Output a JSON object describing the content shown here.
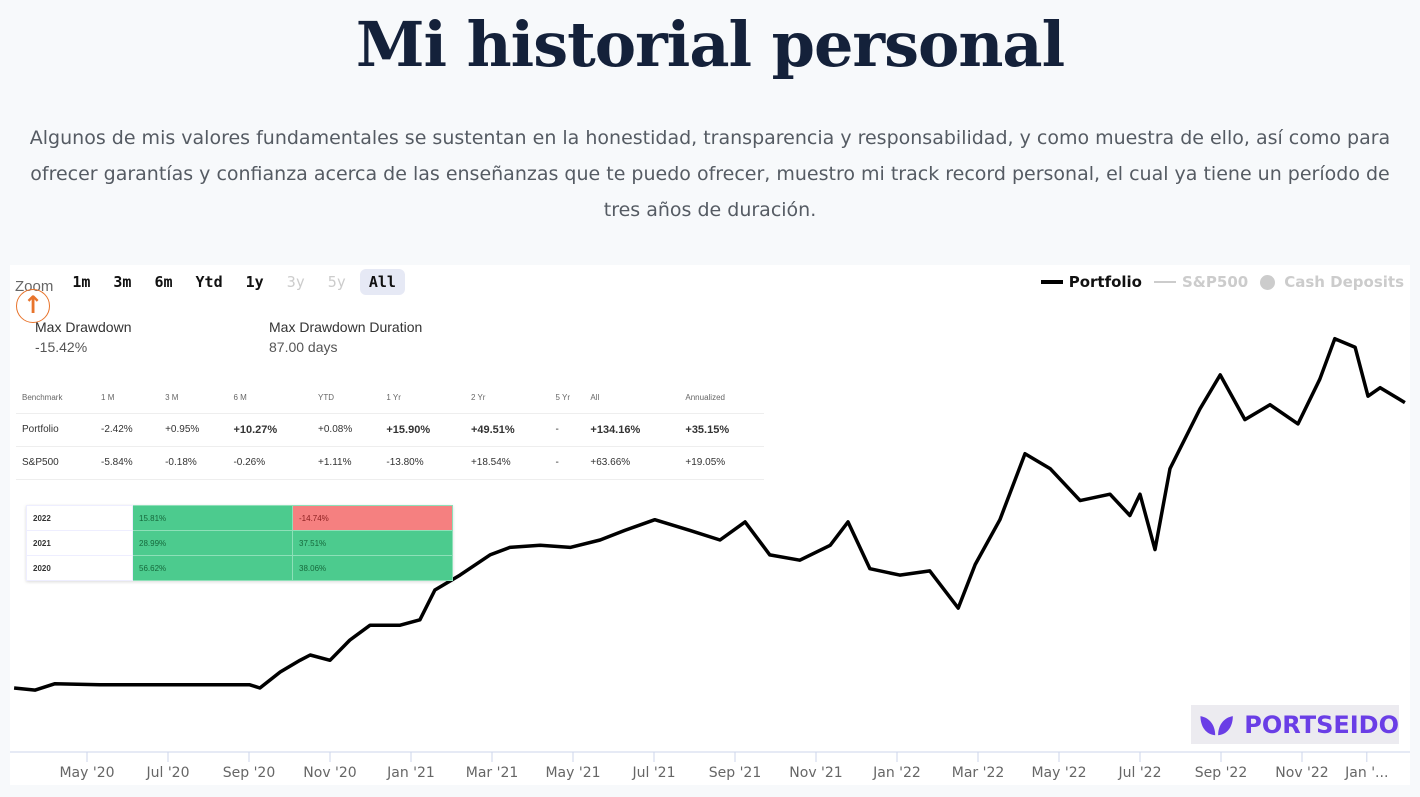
{
  "title": "Mi historial personal",
  "intro": "Algunos de mis valores fundamentales se sustentan en la honestidad, transparencia y responsabilidad, y como muestra de ello, así como para ofrecer garantías y confianza acerca de las enseñanzas que te puedo ofrecer, muestro mi track record personal, el cual ya tiene un período de tres años de duración.",
  "zoom": {
    "label": "Zoom",
    "buttons": [
      {
        "label": "1m",
        "state": "enabled"
      },
      {
        "label": "3m",
        "state": "enabled"
      },
      {
        "label": "6m",
        "state": "enabled"
      },
      {
        "label": "Ytd",
        "state": "enabled"
      },
      {
        "label": "1y",
        "state": "enabled"
      },
      {
        "label": "3y",
        "state": "disabled"
      },
      {
        "label": "5y",
        "state": "disabled"
      },
      {
        "label": "All",
        "state": "active"
      }
    ]
  },
  "stats": {
    "max_drawdown_label": "Max Drawdown",
    "max_drawdown": "-15.42%",
    "duration_label": "Max Drawdown Duration",
    "duration": "87.00 days"
  },
  "benchmark": {
    "headers": [
      "Benchmark",
      "1 M",
      "3 M",
      "6 M",
      "YTD",
      "1 Yr",
      "2 Yr",
      "5 Yr",
      "All",
      "Annualized"
    ],
    "rows": [
      [
        "Portfolio",
        "-2.42%",
        "+0.95%",
        "+10.27%",
        "+0.08%",
        "+15.90%",
        "+49.51%",
        "-",
        "+134.16%",
        "+35.15%"
      ],
      [
        "S&P500",
        "-5.84%",
        "-0.18%",
        "-0.26%",
        "+1.11%",
        "-13.80%",
        "+18.54%",
        "-",
        "+63.66%",
        "+19.05%"
      ]
    ]
  },
  "yearly": [
    [
      "2022",
      "15.81%",
      "-14.74%"
    ],
    [
      "2021",
      "28.99%",
      "37.51%"
    ],
    [
      "2020",
      "56.62%",
      "38.06%"
    ]
  ],
  "legend": [
    {
      "label": "Portfolio",
      "color": "#000000"
    },
    {
      "label": "S&P500",
      "color": "#cccccc"
    },
    {
      "label": "Cash Deposits",
      "color": "#cccccc"
    }
  ],
  "logo": "PORTSEIDO",
  "colors": {
    "accent": "#e8742c",
    "brand": "#6a3ee6",
    "positive": "#3cbf7c",
    "negative": "#e46a6a"
  },
  "chart_data": {
    "type": "line",
    "x_unit": "months since Jan 2020",
    "xticks": [
      {
        "m": 4,
        "label": "May '20"
      },
      {
        "m": 6,
        "label": "Jul '20"
      },
      {
        "m": 8,
        "label": "Sep '20"
      },
      {
        "m": 10,
        "label": "Nov '20"
      },
      {
        "m": 12,
        "label": "Jan '21"
      },
      {
        "m": 14,
        "label": "Mar '21"
      },
      {
        "m": 16,
        "label": "May '21"
      },
      {
        "m": 18,
        "label": "Jul '21"
      },
      {
        "m": 20,
        "label": "Sep '21"
      },
      {
        "m": 22,
        "label": "Nov '21"
      },
      {
        "m": 24,
        "label": "Jan '22"
      },
      {
        "m": 26,
        "label": "Mar '22"
      },
      {
        "m": 28,
        "label": "May '22"
      },
      {
        "m": 30,
        "label": "Jul '22"
      },
      {
        "m": 32,
        "label": "Sep '22"
      },
      {
        "m": 34,
        "label": "Nov '22"
      },
      {
        "m": 35.6,
        "label": "Jan '..."
      }
    ],
    "xlim": [
      2.2,
      36.6
    ],
    "ylim": [
      -15,
      175
    ],
    "series": [
      {
        "name": "Portfolio",
        "unit": "% return",
        "x": [
          2.2,
          2.72,
          3.21,
          4.32,
          8.02,
          8.27,
          8.77,
          9.26,
          9.51,
          10.0,
          10.49,
          10.99,
          11.73,
          12.22,
          12.59,
          13.21,
          13.95,
          14.44,
          15.19,
          15.93,
          16.67,
          17.28,
          18.02,
          18.89,
          19.63,
          20.25,
          20.86,
          21.6,
          22.35,
          22.79,
          23.33,
          24.07,
          24.81,
          25.51,
          25.93,
          26.54,
          27.16,
          27.78,
          28.52,
          29.26,
          29.75,
          30.0,
          30.37,
          30.74,
          31.48,
          31.98,
          32.59,
          33.21,
          33.9,
          34.44,
          34.81,
          35.31,
          35.63,
          35.93,
          36.54
        ],
        "y": [
          0,
          -1,
          2,
          1.5,
          1.5,
          0,
          7.5,
          13,
          15.5,
          13,
          22.5,
          29.5,
          29.5,
          32,
          46,
          53,
          62.5,
          66,
          67,
          66,
          69.5,
          74,
          79,
          74,
          69.5,
          78,
          62.5,
          60,
          67,
          78,
          56,
          53,
          55,
          37.5,
          58,
          79,
          110,
          103,
          88,
          91,
          81,
          91,
          65,
          103,
          131,
          147,
          126,
          133,
          124,
          145,
          164,
          160,
          137,
          141,
          134
        ]
      }
    ]
  }
}
